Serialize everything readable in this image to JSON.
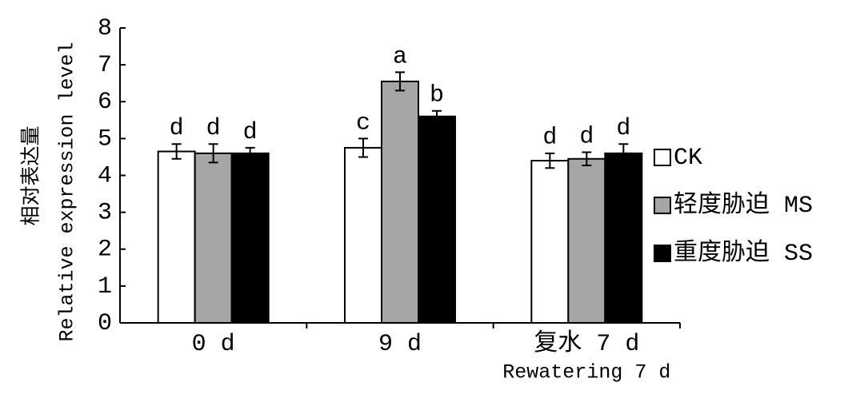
{
  "chart_data": {
    "type": "bar",
    "y_label": [
      "相对表达量",
      "Relative expression level"
    ],
    "categories": [
      "0 d",
      "9 d",
      "复水 7 d"
    ],
    "x_annotation": "Rewatering 7 d",
    "series": [
      {
        "name": "CK",
        "color": "#ffffff",
        "values": [
          4.65,
          4.75,
          4.4
        ],
        "errors": [
          0.2,
          0.25,
          0.2
        ],
        "labels": [
          "d",
          "c",
          "d"
        ]
      },
      {
        "name": "轻度胁迫 MS",
        "color": "#a6a6a6",
        "values": [
          4.6,
          6.55,
          4.45
        ],
        "errors": [
          0.25,
          0.25,
          0.18
        ],
        "labels": [
          "d",
          "a",
          "d"
        ]
      },
      {
        "name": "重度胁迫 SS",
        "color": "#000000",
        "values": [
          4.6,
          5.6,
          4.6
        ],
        "errors": [
          0.15,
          0.15,
          0.25
        ],
        "labels": [
          "d",
          "b",
          "d"
        ]
      }
    ],
    "ylim": [
      0,
      8
    ],
    "yticks": [
      0,
      1,
      2,
      3,
      4,
      5,
      6,
      7,
      8
    ],
    "grid": false
  }
}
